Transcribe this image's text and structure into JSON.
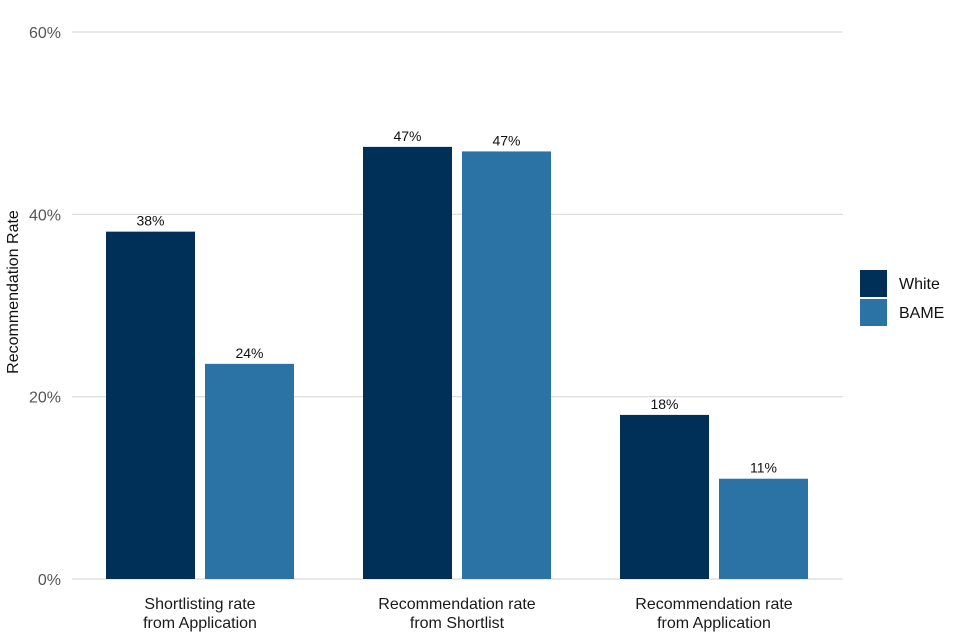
{
  "chart_data": {
    "type": "bar",
    "categories": [
      [
        "Shortlisting rate",
        "from Application"
      ],
      [
        "Recommendation rate",
        "from Shortlist"
      ],
      [
        "Recommendation rate",
        "from Application"
      ]
    ],
    "series": [
      {
        "name": "White",
        "color": "#003057",
        "values": [
          38.1,
          47.4,
          18.0
        ],
        "labels": [
          "38%",
          "47%",
          "18%"
        ]
      },
      {
        "name": "BAME",
        "color": "#2a73a4",
        "values": [
          23.6,
          46.9,
          11.0
        ],
        "labels": [
          "24%",
          "47%",
          "11%"
        ]
      }
    ],
    "title": "",
    "xlabel": "",
    "ylabel": "Recommendation Rate",
    "ylim": [
      0,
      60
    ],
    "yticks": [
      0,
      20,
      40,
      60
    ],
    "ytick_labels": [
      "0%",
      "20%",
      "40%",
      "60%"
    ],
    "grid": true,
    "legend_position": "right"
  }
}
